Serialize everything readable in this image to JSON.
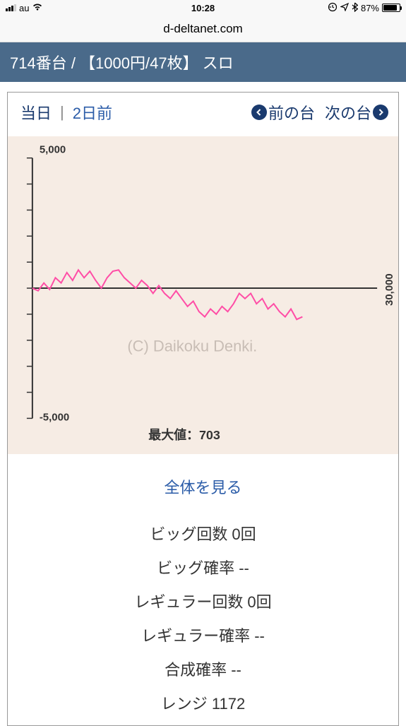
{
  "status": {
    "carrier": "au",
    "time": "10:28",
    "battery_pct": "87%",
    "battery_fill_pct": 87
  },
  "url": "d-deltanet.com",
  "header": "714番台 / 【1000円/47枚】 スロ",
  "nav": {
    "today": "当日",
    "sep": "|",
    "two_days": "2日前",
    "prev": "前の台",
    "next": "次の台"
  },
  "chart": {
    "type": "line",
    "y_top_label": "5,000",
    "y_bottom_label": "-5,000",
    "y_top_val": 5000,
    "y_bottom_val": -5000,
    "x_right_label": "30,000",
    "x_max_val": 30000,
    "watermark": "(C) Daikoku Denki.",
    "max_label": "最大値：703",
    "line_color": "#ff4da6",
    "background_color": "#f6ece4",
    "axis_color": "#333333",
    "data": [
      [
        0,
        0
      ],
      [
        500,
        -100
      ],
      [
        1000,
        200
      ],
      [
        1500,
        -50
      ],
      [
        2000,
        400
      ],
      [
        2500,
        200
      ],
      [
        3000,
        600
      ],
      [
        3500,
        300
      ],
      [
        4000,
        700
      ],
      [
        4500,
        400
      ],
      [
        5000,
        650
      ],
      [
        5500,
        300
      ],
      [
        6000,
        0
      ],
      [
        6500,
        400
      ],
      [
        7000,
        650
      ],
      [
        7500,
        700
      ],
      [
        8000,
        400
      ],
      [
        8500,
        200
      ],
      [
        9000,
        0
      ],
      [
        9500,
        300
      ],
      [
        10000,
        100
      ],
      [
        10500,
        -200
      ],
      [
        11000,
        100
      ],
      [
        11500,
        -200
      ],
      [
        12000,
        -400
      ],
      [
        12500,
        -100
      ],
      [
        13000,
        -400
      ],
      [
        13500,
        -700
      ],
      [
        14000,
        -500
      ],
      [
        14500,
        -900
      ],
      [
        15000,
        -1100
      ],
      [
        15500,
        -800
      ],
      [
        16000,
        -1000
      ],
      [
        16500,
        -700
      ],
      [
        17000,
        -900
      ],
      [
        17500,
        -600
      ],
      [
        18000,
        -200
      ],
      [
        18500,
        -400
      ],
      [
        19000,
        -200
      ],
      [
        19500,
        -600
      ],
      [
        20000,
        -400
      ],
      [
        20500,
        -800
      ],
      [
        21000,
        -600
      ],
      [
        21500,
        -900
      ],
      [
        22000,
        -1100
      ],
      [
        22500,
        -800
      ],
      [
        23000,
        -1200
      ],
      [
        23500,
        -1100
      ]
    ]
  },
  "info": {
    "view_all": "全体を見る",
    "stats": [
      "ビッグ回数 0回",
      "ビッグ確率 --",
      "レギュラー回数 0回",
      "レギュラー確率 --",
      "合成確率 --",
      "レンジ 1172"
    ]
  }
}
